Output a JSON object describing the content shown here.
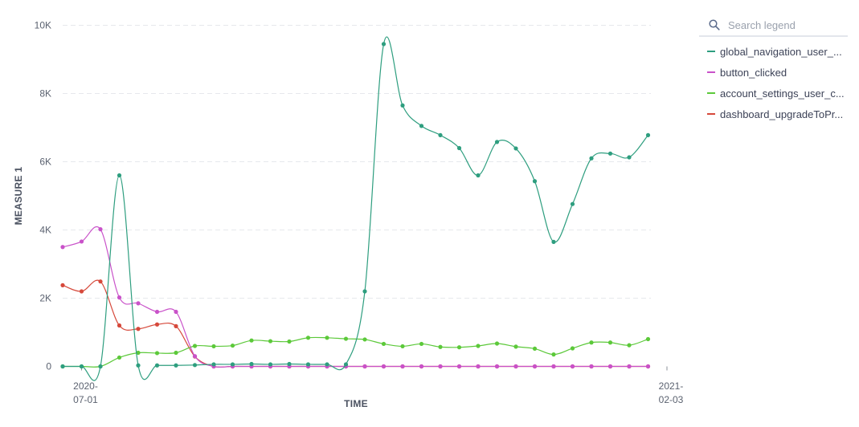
{
  "chart_data": {
    "type": "line",
    "xlabel": "TIME",
    "ylabel": "MEASURE 1",
    "ylim": [
      0,
      10000
    ],
    "y_ticks": [
      {
        "value": 0,
        "label": "0"
      },
      {
        "value": 2000,
        "label": "2K"
      },
      {
        "value": 4000,
        "label": "4K"
      },
      {
        "value": 6000,
        "label": "6K"
      },
      {
        "value": 8000,
        "label": "8K"
      },
      {
        "value": 10000,
        "label": "10K"
      }
    ],
    "x_start": "2020-06-24",
    "x_step_days": 7,
    "x_ticks": [
      {
        "date": "2020-07-01",
        "line1": "2020-",
        "line2": "07-01"
      },
      {
        "date": "2021-02-03",
        "line1": "2021-",
        "line2": "02-03"
      }
    ],
    "grid": true,
    "legend_position": "right",
    "series": [
      {
        "name": "global_navigation_user_...",
        "color": "#2e9e7f",
        "values": [
          0,
          0,
          0,
          5600,
          30,
          30,
          30,
          40,
          60,
          60,
          70,
          60,
          70,
          60,
          60,
          60,
          2200,
          9450,
          7650,
          7050,
          6780,
          6400,
          5600,
          6580,
          6390,
          5430,
          3650,
          4760,
          6100,
          6240,
          6130,
          6780
        ]
      },
      {
        "name": "button_clicked",
        "color": "#c952c9",
        "values": [
          3500,
          3660,
          4020,
          2020,
          1850,
          1600,
          1600,
          300,
          0,
          0,
          0,
          0,
          0,
          0,
          0,
          0,
          0,
          0,
          0,
          0,
          0,
          0,
          0,
          0,
          0,
          0,
          0,
          0,
          0,
          0,
          0,
          0
        ]
      },
      {
        "name": "account_settings_user_c...",
        "color": "#5cc93a",
        "values": [
          0,
          0,
          0,
          260,
          400,
          390,
          400,
          600,
          590,
          610,
          760,
          740,
          730,
          840,
          840,
          810,
          790,
          660,
          590,
          660,
          570,
          560,
          600,
          670,
          580,
          520,
          350,
          530,
          700,
          700,
          620,
          800
        ]
      },
      {
        "name": "dashboard_upgradeToPr...",
        "color": "#d6493b",
        "values": [
          2380,
          2200,
          2490,
          1200,
          1100,
          1230,
          1180,
          290,
          0,
          0,
          0,
          0,
          0,
          0,
          0,
          0,
          0,
          0,
          0,
          0,
          0,
          0,
          0,
          0,
          0,
          0,
          0,
          0,
          0,
          0,
          0,
          0
        ]
      }
    ]
  },
  "legend": {
    "search_placeholder": "Search legend",
    "search_icon": "search-icon"
  }
}
